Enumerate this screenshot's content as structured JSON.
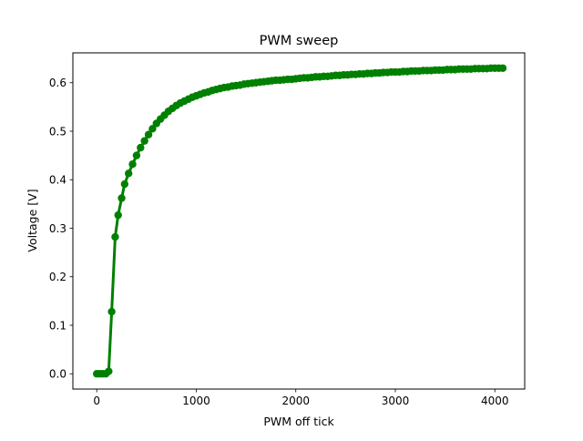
{
  "chart_data": {
    "type": "line",
    "title": "PWM sweep",
    "xlabel": "PWM off tick",
    "ylabel": "Voltage [V]",
    "xlim": [
      -240,
      4300
    ],
    "ylim": [
      -0.0315,
      0.6615
    ],
    "xticks": [
      0,
      1000,
      2000,
      3000,
      4000
    ],
    "yticks": [
      0.0,
      0.1,
      0.2,
      0.3,
      0.4,
      0.5,
      0.6
    ],
    "grid": false,
    "marker": "circle",
    "line_color": "#008000",
    "series": [
      {
        "x": [
          0,
          30,
          60,
          90,
          120,
          150,
          185,
          215,
          250,
          280,
          320,
          360,
          400,
          440,
          480,
          520,
          560,
          600,
          640,
          680,
          720,
          760,
          800,
          840,
          880,
          920,
          960,
          1000,
          1040,
          1080,
          1120,
          1160,
          1200,
          1240,
          1280,
          1320,
          1360,
          1400,
          1440,
          1480,
          1520,
          1560,
          1600,
          1640,
          1680,
          1720,
          1760,
          1800,
          1840,
          1880,
          1920,
          1960,
          2000,
          2040,
          2080,
          2120,
          2160,
          2200,
          2240,
          2280,
          2320,
          2360,
          2400,
          2440,
          2480,
          2520,
          2560,
          2600,
          2640,
          2680,
          2720,
          2760,
          2800,
          2840,
          2880,
          2920,
          2960,
          3000,
          3040,
          3080,
          3120,
          3160,
          3200,
          3240,
          3280,
          3320,
          3360,
          3400,
          3440,
          3480,
          3520,
          3560,
          3600,
          3640,
          3680,
          3720,
          3760,
          3800,
          3840,
          3880,
          3920,
          3960,
          4000,
          4040,
          4080
        ],
        "values": [
          0.0,
          0.0,
          0.0,
          0.0,
          0.005,
          0.128,
          0.282,
          0.327,
          0.362,
          0.391,
          0.413,
          0.432,
          0.45,
          0.466,
          0.48,
          0.493,
          0.505,
          0.516,
          0.525,
          0.533,
          0.541,
          0.547,
          0.553,
          0.558,
          0.562,
          0.566,
          0.57,
          0.573,
          0.576,
          0.579,
          0.581,
          0.584,
          0.586,
          0.588,
          0.59,
          0.591,
          0.593,
          0.594,
          0.595,
          0.597,
          0.598,
          0.599,
          0.6,
          0.601,
          0.602,
          0.603,
          0.604,
          0.605,
          0.605,
          0.606,
          0.607,
          0.607,
          0.608,
          0.609,
          0.61,
          0.61,
          0.611,
          0.612,
          0.612,
          0.613,
          0.613,
          0.614,
          0.615,
          0.615,
          0.616,
          0.616,
          0.617,
          0.617,
          0.618,
          0.618,
          0.619,
          0.619,
          0.62,
          0.62,
          0.621,
          0.621,
          0.622,
          0.622,
          0.622,
          0.623,
          0.623,
          0.624,
          0.624,
          0.624,
          0.625,
          0.625,
          0.625,
          0.626,
          0.626,
          0.626,
          0.627,
          0.627,
          0.627,
          0.628,
          0.628,
          0.628,
          0.628,
          0.629,
          0.629,
          0.629,
          0.629,
          0.63,
          0.63,
          0.63,
          0.63
        ]
      }
    ]
  }
}
